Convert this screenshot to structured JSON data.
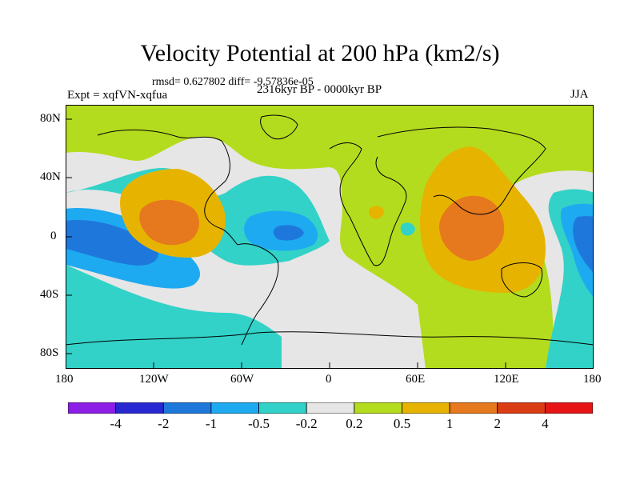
{
  "header": {
    "title": "Velocity Potential at 200 hPa (km2/s)",
    "stats": "rmsd= 0.627802 diff= -9.57836e-05",
    "experiment": "Expt = xqfVN-xqfua",
    "period": "2316kyr BP - 0000kyr BP",
    "season": "JJA"
  },
  "axes": {
    "lon_labels": [
      "180",
      "120W",
      "60W",
      "0",
      "60E",
      "120E",
      "180"
    ],
    "lat_labels": [
      "80N",
      "40N",
      "0",
      "40S",
      "80S"
    ]
  },
  "colorbar": {
    "labels": [
      "-4",
      "-2",
      "-1",
      "-0.5",
      "-0.2",
      "0.2",
      "0.5",
      "1",
      "2",
      "4"
    ],
    "colors": [
      "#8c1ee6",
      "#2828d2",
      "#1e78dc",
      "#1eaaf0",
      "#32d2c8",
      "#e6e6e6",
      "#b4dc1e",
      "#e6b400",
      "#e6781e",
      "#dc3c14",
      "#e61414"
    ]
  }
}
